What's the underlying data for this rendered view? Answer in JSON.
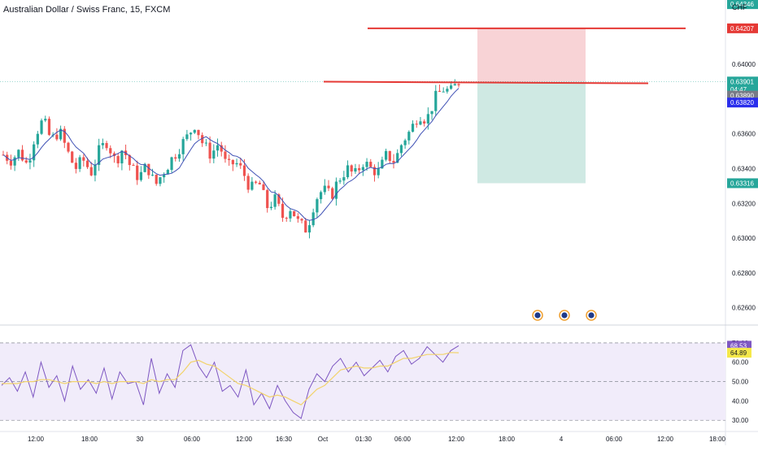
{
  "header": {
    "title": "Australian Dollar / Swiss Franc, 15, FXCM",
    "currency": "CHF"
  },
  "colors": {
    "up": "#26a69a",
    "down": "#ef5350",
    "ma": "#3f51b5",
    "rsi_line": "#7e57c2",
    "rsi_ma": "#f2d36b",
    "level_line": "#e53935",
    "loss_zone": "#f8d3d6",
    "profit_zone": "#cfe9e3",
    "rsi_band": "#f1ecfa"
  },
  "chart_data": [
    {
      "type": "candlestick",
      "title": "Australian Dollar / Swiss Franc, 15, FXCM",
      "ylim": [
        0.625,
        0.6437
      ],
      "y_ticks": [
        "0.64000",
        "0.63800",
        "0.63600",
        "0.63400",
        "0.63200",
        "0.63000",
        "0.62800",
        "0.62600"
      ],
      "x_tick_labels": [
        "12:00",
        "18:00",
        "30",
        "06:00",
        "12:00",
        "16:30",
        "Oct",
        "01:30",
        "06:00",
        "12:00",
        "18:00",
        "4",
        "06:00",
        "12:00",
        "18:00"
      ],
      "price_path": [
        0.6348,
        0.6345,
        0.635,
        0.6342,
        0.636,
        0.6368,
        0.6356,
        0.6362,
        0.635,
        0.634,
        0.6345,
        0.6338,
        0.635,
        0.6356,
        0.6344,
        0.6352,
        0.634,
        0.6335,
        0.6342,
        0.633,
        0.6338,
        0.6345,
        0.6352,
        0.6358,
        0.6366,
        0.6354,
        0.6348,
        0.6355,
        0.634,
        0.6344,
        0.6338,
        0.6328,
        0.6332,
        0.6318,
        0.6322,
        0.6312,
        0.6318,
        0.6308,
        0.6305,
        0.6322,
        0.6328,
        0.6324,
        0.6334,
        0.634,
        0.6336,
        0.6344,
        0.634,
        0.6338,
        0.6348,
        0.6344,
        0.6356,
        0.6362,
        0.6372,
        0.6368,
        0.638,
        0.6386,
        0.6384,
        0.639
      ],
      "levels": [
        {
          "name": "stop",
          "value": 0.64207,
          "label": "0.64207"
        },
        {
          "name": "entry",
          "value": 0.639,
          "label": ""
        }
      ],
      "position": {
        "entry": 0.639,
        "stop": 0.64207,
        "target": 0.63316
      },
      "price_tags": [
        {
          "label": "0.64346",
          "value": 0.64346,
          "color": "#26a69a"
        },
        {
          "label": "0.64207",
          "value": 0.64207,
          "color": "#e53935"
        },
        {
          "label": "0.63901",
          "value": 0.63901,
          "color": "#26a69a"
        },
        {
          "label": "04:47",
          "value": 0.63855,
          "color": "#26a69a"
        },
        {
          "label": "0.63890",
          "value": 0.6382,
          "color": "#787b86"
        },
        {
          "label": "0.63820",
          "value": 0.6378,
          "color": "#2a2eec"
        },
        {
          "label": "0.63316",
          "value": 0.63316,
          "color": "#26a69a"
        }
      ],
      "event_markers": 3
    },
    {
      "type": "line",
      "title": "RSI",
      "ylim": [
        28,
        75
      ],
      "y_ticks": [
        "70.00",
        "60.00",
        "50.00",
        "40.00",
        "30.00"
      ],
      "bands": [
        70,
        30
      ],
      "midline": 50,
      "series": [
        {
          "name": "",
          "values": [
            48,
            52,
            45,
            55,
            42,
            60,
            47,
            53,
            40,
            58,
            46,
            51,
            44,
            57,
            41,
            55,
            49,
            50,
            38,
            62,
            44,
            54,
            47,
            66,
            69,
            58,
            52,
            60,
            45,
            48,
            42,
            56,
            38,
            44,
            36,
            48,
            40,
            34,
            31,
            46,
            54,
            50,
            58,
            62,
            55,
            60,
            53,
            57,
            61,
            55,
            63,
            66,
            59,
            62,
            68,
            64,
            60,
            66,
            68.53
          ]
        },
        {
          "name": "",
          "values": [
            49,
            49,
            49,
            50,
            50,
            51,
            51,
            50,
            49,
            50,
            50,
            50,
            49,
            50,
            49,
            50,
            50,
            50,
            49,
            51,
            50,
            51,
            51,
            55,
            60,
            61,
            59,
            58,
            55,
            52,
            49,
            48,
            46,
            44,
            42,
            43,
            42,
            40,
            38,
            42,
            46,
            48,
            52,
            56,
            57,
            58,
            57,
            57,
            58,
            58,
            60,
            62,
            62,
            63,
            64,
            64,
            64,
            65,
            64.89
          ]
        }
      ],
      "tags": [
        {
          "label": "68.53",
          "value": 68.53,
          "color": "#7e57c2"
        },
        {
          "label": "64.89",
          "value": 64.89,
          "color": "#f5e84a"
        }
      ]
    }
  ]
}
